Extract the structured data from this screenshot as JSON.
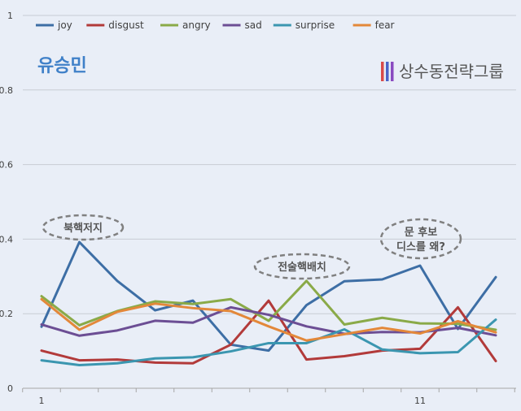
{
  "chart_data": {
    "type": "line",
    "x": [
      1,
      2,
      3,
      4,
      5,
      6,
      7,
      8,
      9,
      10,
      11,
      12,
      13
    ],
    "x_tick_labels": [
      "1",
      "11"
    ],
    "y_tick_labels": [
      "0",
      "0.2",
      "0.4",
      "0.6",
      "0.8",
      "1"
    ],
    "ylim": [
      0,
      1
    ],
    "grid": true,
    "legend_position": "top-left",
    "series": [
      {
        "name": "joy",
        "color": "#3d6ea5",
        "values": [
          0.165,
          0.392,
          0.288,
          0.209,
          0.235,
          0.117,
          0.101,
          0.223,
          0.287,
          0.292,
          0.329,
          0.159,
          0.298
        ]
      },
      {
        "name": "disgust",
        "color": "#b23a3a",
        "values": [
          0.101,
          0.075,
          0.077,
          0.069,
          0.067,
          0.117,
          0.235,
          0.077,
          0.086,
          0.101,
          0.106,
          0.217,
          0.073
        ]
      },
      {
        "name": "angry",
        "color": "#8aaa48",
        "values": [
          0.247,
          0.169,
          0.207,
          0.233,
          0.226,
          0.239,
          0.181,
          0.288,
          0.171,
          0.189,
          0.174,
          0.173,
          0.157
        ]
      },
      {
        "name": "sad",
        "color": "#6c4e94",
        "values": [
          0.171,
          0.141,
          0.155,
          0.181,
          0.176,
          0.217,
          0.197,
          0.166,
          0.146,
          0.151,
          0.15,
          0.162,
          0.142
        ]
      },
      {
        "name": "surprise",
        "color": "#3b96b0",
        "values": [
          0.075,
          0.062,
          0.067,
          0.08,
          0.083,
          0.099,
          0.121,
          0.121,
          0.158,
          0.104,
          0.094,
          0.097,
          0.184
        ]
      },
      {
        "name": "fear",
        "color": "#e3883a",
        "values": [
          0.239,
          0.157,
          0.205,
          0.227,
          0.215,
          0.207,
          0.166,
          0.128,
          0.145,
          0.162,
          0.147,
          0.18,
          0.15
        ]
      }
    ],
    "annotations": [
      {
        "lines": [
          "북핵저지"
        ],
        "x": 2
      },
      {
        "lines": [
          "전술핵배치"
        ],
        "x": 8
      },
      {
        "lines": [
          "문 후보",
          "디스를 왜?"
        ],
        "x": 11
      }
    ]
  },
  "person_name": "유승민",
  "brand": {
    "name": "상수동전략그룹",
    "bar_colors": [
      "#d94a4a",
      "#4a63c8",
      "#8a4ac0"
    ]
  }
}
